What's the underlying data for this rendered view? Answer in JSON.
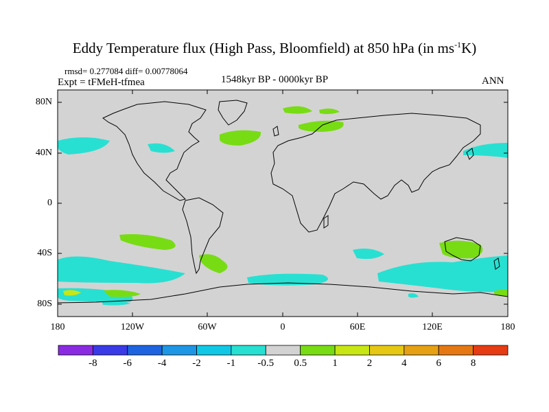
{
  "title": "Eddy Temperature flux (High Pass, Bloomfield) at 850 hPa (in ms",
  "title_sup": "-1",
  "title_end": "K)",
  "stats": "rmsd= 0.277084 diff= 0.00778064",
  "expt": "Expt = tFMeH-tfmea",
  "period": "1548kyr BP - 0000kyr BP",
  "season": "ANN",
  "lat_labels": [
    "80N",
    "40N",
    "0",
    "40S",
    "80S"
  ],
  "lon_labels": [
    "180",
    "120W",
    "60W",
    "0",
    "60E",
    "120E",
    "180"
  ],
  "colorbar": {
    "labels": [
      "-8",
      "-6",
      "-4",
      "-2",
      "-1",
      "-0.5",
      "0.5",
      "1",
      "2",
      "4",
      "6",
      "8"
    ],
    "colors": [
      "#8a2be2",
      "#3a3ae6",
      "#1e64e0",
      "#1e96e6",
      "#10c8e6",
      "#28e0d2",
      "#d3d3d3",
      "#78dc14",
      "#c8e614",
      "#e6c814",
      "#e6a014",
      "#e67814",
      "#e63c14"
    ]
  },
  "colors": {
    "ocean_land_background": "#d3d3d3",
    "coastline": "#000000"
  }
}
